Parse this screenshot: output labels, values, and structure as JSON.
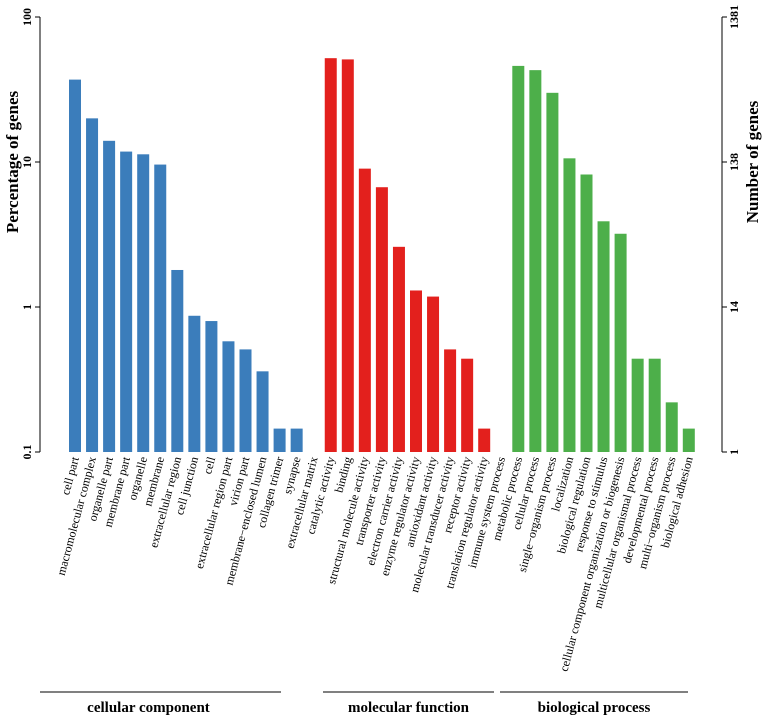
{
  "chart_data": {
    "type": "bar",
    "yscale": "log",
    "ylabel": "Percentage of genes",
    "y2label": "Number of genes",
    "ylim": [
      0.1,
      100
    ],
    "y_ticks": [
      "0.1",
      "1",
      "10",
      "100"
    ],
    "y2_ticks": [
      "1",
      "14",
      "138",
      "1381"
    ],
    "categories": [
      "cell part",
      "macromolecular complex",
      "organelle part",
      "membrane part",
      "organelle",
      "membrane",
      "extracellular region",
      "cell junction",
      "cell",
      "extracellular region part",
      "virion part",
      "membrane−enclosed lumen",
      "collagen trimer",
      "synapse",
      "extracellular matrix",
      "catalytic activity",
      "binding",
      "structural molecule activity",
      "transporter activity",
      "electron carrier activity",
      "enzyme regulator activity",
      "antioxidant activity",
      "molecular transducer activity",
      "receptor activity",
      "translation regulator activity",
      "immune system process",
      "metabolic process",
      "cellular process",
      "single−organism process",
      "localization",
      "biological regulation",
      "response to stimulus",
      "cellular component organization or biogenesis",
      "multicellular organismal process",
      "developmental process",
      "multi−organism process",
      "biological adhesion"
    ],
    "values": [
      37,
      20,
      14,
      11.8,
      11.3,
      9.6,
      1.8,
      0.87,
      0.8,
      0.58,
      0.51,
      0.36,
      0.145,
      0.145,
      null,
      52,
      51,
      9,
      6.7,
      2.6,
      1.3,
      1.18,
      0.51,
      0.44,
      0.145,
      null,
      46,
      43,
      30,
      10.6,
      8.2,
      3.9,
      3.2,
      0.44,
      0.44,
      0.22,
      0.145
    ],
    "colors": {
      "cellular component": "#3b7dbb",
      "molecular function": "#e3201d",
      "biological process": "#4daf4a"
    },
    "groups": [
      {
        "name": "cellular component",
        "start": 0,
        "end": 14
      },
      {
        "name": "molecular function",
        "start": 15,
        "end": 24
      },
      {
        "name": "biological process",
        "start": 25,
        "end": 36
      }
    ]
  }
}
